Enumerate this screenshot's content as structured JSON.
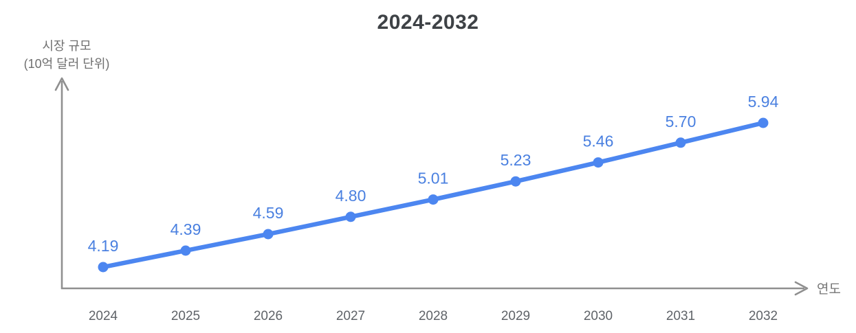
{
  "chart_data": {
    "type": "line",
    "title": "2024-2032",
    "ylabel_lines": [
      "시장 규모",
      "(10억 달러 단위)"
    ],
    "xlabel": "연도",
    "categories": [
      "2024",
      "2025",
      "2026",
      "2027",
      "2028",
      "2029",
      "2030",
      "2031",
      "2032"
    ],
    "series": [
      {
        "name": "시장 규모 (10억 달러 단위)",
        "values": [
          4.19,
          4.39,
          4.59,
          4.8,
          5.01,
          5.23,
          5.46,
          5.7,
          5.94
        ],
        "value_labels": [
          "4.19",
          "4.39",
          "4.59",
          "4.80",
          "5.01",
          "5.23",
          "5.46",
          "5.70",
          "5.94"
        ]
      }
    ],
    "ylim": [
      4.19,
      5.94
    ],
    "grid": false,
    "legend": "none",
    "colors": {
      "line": "#4c86f0",
      "point": "#4c86f0",
      "value_label": "#4a80e0",
      "axis": "#8f8f8f",
      "tick_label": "#5f6368",
      "title": "#3e4246",
      "axis_title": "#757575",
      "background": "#ffffff"
    }
  }
}
